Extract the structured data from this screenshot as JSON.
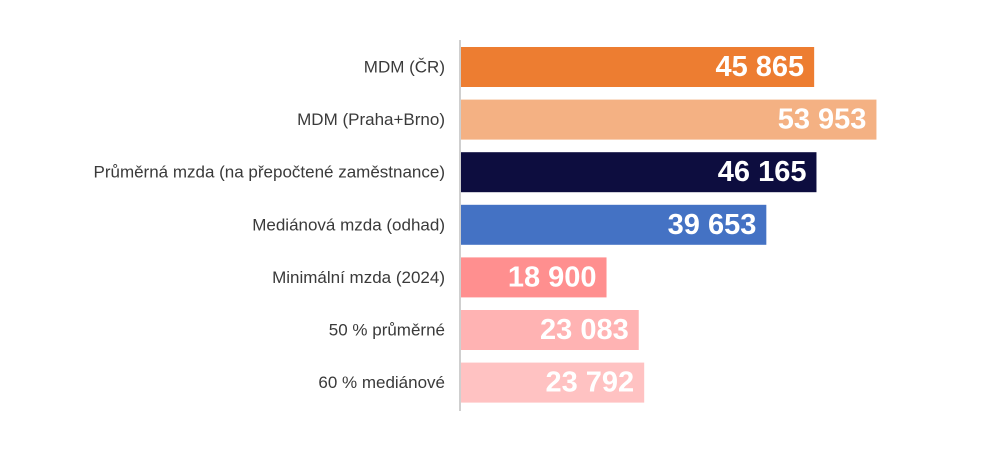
{
  "chart_data": {
    "type": "bar",
    "orientation": "horizontal",
    "categories": [
      "MDM (ČR)",
      "MDM (Praha+Brno)",
      "Průměrná mzda (na přepočtené zaměstnance)",
      "Mediánová mzda (odhad)",
      "Minimální mzda (2024)",
      "50 % průměrné",
      "60 % mediánové"
    ],
    "values": [
      45865,
      53953,
      46165,
      39653,
      18900,
      23083,
      23792
    ],
    "value_labels": [
      "45 865",
      "53 953",
      "46 165",
      "39 653",
      "18 900",
      "23 083",
      "23 792"
    ],
    "colors": [
      "#ed7d31",
      "#f4b183",
      "#0d0d3f",
      "#4472c4",
      "#ff8f8f",
      "#ffb3b3",
      "#ffc2c2"
    ],
    "xlim": [
      0,
      60000
    ],
    "grid": false,
    "legend": "none",
    "axis_color": "#bfbfbf"
  }
}
